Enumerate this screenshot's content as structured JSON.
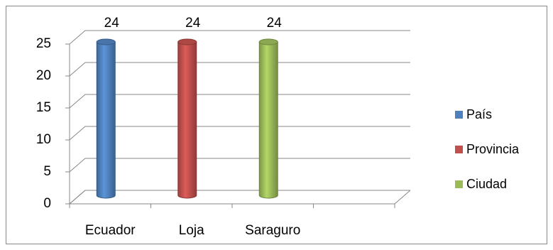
{
  "chart_data": {
    "type": "bar3d",
    "categories": [
      "Ecuador",
      "Loja",
      "Saraguro",
      null
    ],
    "series": [
      {
        "name": "País",
        "color": "#4f81bd",
        "values": [
          24,
          null,
          null,
          null
        ]
      },
      {
        "name": "Provincia",
        "color": "#c0504d",
        "values": [
          null,
          24,
          null,
          null
        ]
      },
      {
        "name": "Ciudad",
        "color": "#9bbb59",
        "values": [
          null,
          null,
          24,
          null
        ]
      }
    ],
    "ylim": [
      0,
      25
    ],
    "yticks": [
      0,
      5,
      10,
      15,
      20,
      25
    ],
    "grid": true,
    "legend": "right"
  }
}
